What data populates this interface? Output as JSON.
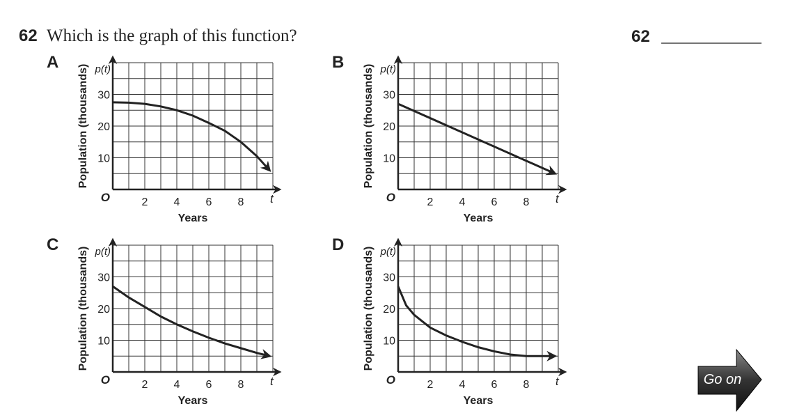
{
  "question": {
    "number": "62",
    "text": "Which is the graph of this function?",
    "answer_number": "62"
  },
  "chart_data": [
    {
      "type": "line",
      "label": "A",
      "y_label": "Population (thousands)",
      "x_label": "Years",
      "y_var": "p(t)",
      "x_var": "t",
      "origin_label": "O",
      "xlim": [
        0,
        10
      ],
      "ylim": [
        0,
        40
      ],
      "xticks": [
        2,
        4,
        6,
        8
      ],
      "yticks": [
        10,
        20,
        30
      ],
      "grid_x": [
        1,
        2,
        3,
        4,
        5,
        6,
        7,
        8,
        9,
        10
      ],
      "grid_y": [
        5,
        10,
        15,
        20,
        25,
        30,
        35,
        40
      ],
      "color": "#222222",
      "x": [
        0,
        1,
        2,
        3,
        4,
        5,
        6,
        7,
        8,
        9,
        9.8
      ],
      "values": [
        27.5,
        27.4,
        27,
        26.2,
        25,
        23.3,
        21,
        18.5,
        15,
        10.5,
        6
      ]
    },
    {
      "type": "line",
      "label": "B",
      "y_label": "Population (thousands)",
      "x_label": "Years",
      "y_var": "p(t)",
      "x_var": "t",
      "origin_label": "O",
      "xlim": [
        0,
        10
      ],
      "ylim": [
        0,
        40
      ],
      "xticks": [
        2,
        4,
        6,
        8
      ],
      "yticks": [
        10,
        20,
        30
      ],
      "grid_x": [
        1,
        2,
        3,
        4,
        5,
        6,
        7,
        8,
        9,
        10
      ],
      "grid_y": [
        5,
        10,
        15,
        20,
        25,
        30,
        35,
        40
      ],
      "color": "#222222",
      "x": [
        0,
        9.8
      ],
      "values": [
        27,
        5
      ]
    },
    {
      "type": "line",
      "label": "C",
      "y_label": "Population (thousands)",
      "x_label": "Years",
      "y_var": "p(t)",
      "x_var": "t",
      "origin_label": "O",
      "xlim": [
        0,
        10
      ],
      "ylim": [
        0,
        40
      ],
      "xticks": [
        2,
        4,
        6,
        8
      ],
      "yticks": [
        10,
        20,
        30
      ],
      "grid_x": [
        1,
        2,
        3,
        4,
        5,
        6,
        7,
        8,
        9,
        10
      ],
      "grid_y": [
        5,
        10,
        15,
        20,
        25,
        30,
        35,
        40
      ],
      "color": "#222222",
      "x": [
        0,
        1,
        2,
        3,
        4,
        5,
        6,
        7,
        8,
        9,
        9.8
      ],
      "values": [
        27,
        23.5,
        20.5,
        17.5,
        15,
        12.8,
        10.8,
        9,
        7.5,
        6,
        5
      ]
    },
    {
      "type": "line",
      "label": "D",
      "y_label": "Population (thousands)",
      "x_label": "Years",
      "y_var": "p(t)",
      "x_var": "t",
      "origin_label": "O",
      "xlim": [
        0,
        10
      ],
      "ylim": [
        0,
        40
      ],
      "xticks": [
        2,
        4,
        6,
        8
      ],
      "yticks": [
        10,
        20,
        30
      ],
      "grid_x": [
        1,
        2,
        3,
        4,
        5,
        6,
        7,
        8,
        9,
        10
      ],
      "grid_y": [
        5,
        10,
        15,
        20,
        25,
        30,
        35,
        40
      ],
      "color": "#222222",
      "x": [
        0,
        0.5,
        1,
        2,
        3,
        4,
        5,
        6,
        7,
        8,
        9,
        9.8
      ],
      "values": [
        27,
        21,
        18,
        14,
        11.5,
        9.5,
        7.8,
        6.5,
        5.5,
        5,
        5,
        5
      ]
    }
  ],
  "button": {
    "label": "Go on"
  }
}
